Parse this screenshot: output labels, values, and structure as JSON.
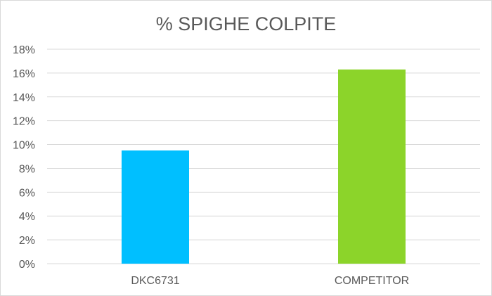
{
  "chart_data": {
    "type": "bar",
    "title": "% SPIGHE COLPITE",
    "xlabel": "",
    "ylabel": "",
    "categories": [
      "DKC6731",
      "COMPETITOR"
    ],
    "values": [
      9.5,
      16.3
    ],
    "bar_colors": [
      "#00BFFF",
      "#8CD42A"
    ],
    "ylim": [
      0,
      18
    ],
    "yticks": [
      0,
      2,
      4,
      6,
      8,
      10,
      12,
      14,
      16,
      18
    ],
    "ytick_labels": [
      "0%",
      "2%",
      "4%",
      "6%",
      "8%",
      "10%",
      "12%",
      "14%",
      "16%",
      "18%"
    ],
    "grid": true,
    "legend": "none"
  }
}
